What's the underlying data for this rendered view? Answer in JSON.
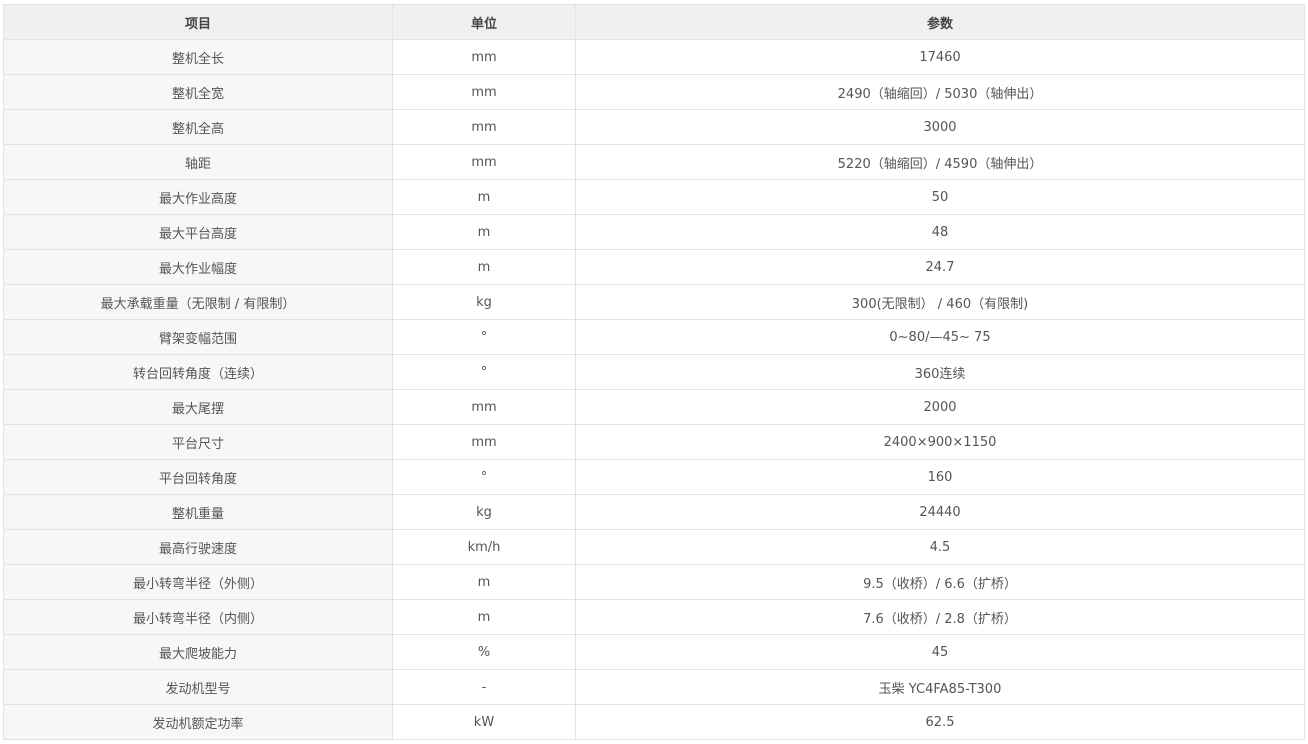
{
  "table": {
    "headers": [
      "项目",
      "单位",
      "参数"
    ],
    "rows": [
      [
        "整机全长",
        "mm",
        "17460"
      ],
      [
        "整机全宽",
        "mm",
        "2490（轴缩回）/ 5030（轴伸出）"
      ],
      [
        "整机全高",
        "mm",
        "3000"
      ],
      [
        "轴距",
        "mm",
        "5220（轴缩回）/ 4590（轴伸出）"
      ],
      [
        "最大作业高度",
        "m",
        "50"
      ],
      [
        "最大平台高度",
        "m",
        "48"
      ],
      [
        "最大作业幅度",
        "m",
        "24.7"
      ],
      [
        "最大承载重量（无限制 / 有限制）",
        "kg",
        "300(无限制） / 460（有限制)"
      ],
      [
        "臂架变幅范围",
        "°",
        "0~80/—45~ 75"
      ],
      [
        "转台回转角度（连续）",
        "°",
        "360连续"
      ],
      [
        "最大尾摆",
        "mm",
        "2000"
      ],
      [
        "平台尺寸",
        "mm",
        "2400×900×1150"
      ],
      [
        "平台回转角度",
        "°",
        "160"
      ],
      [
        "整机重量",
        "kg",
        "24440"
      ],
      [
        "最高行驶速度",
        "km/h",
        "4.5"
      ],
      [
        "最小转弯半径（外侧）",
        "m",
        "9.5（收桥）/ 6.6（扩桥）"
      ],
      [
        "最小转弯半径（内侧）",
        "m",
        "7.6（收桥）/ 2.8（扩桥）"
      ],
      [
        "最大爬坡能力",
        "%",
        "45"
      ],
      [
        "发动机型号",
        "-",
        "玉柴 YC4FA85-T300"
      ],
      [
        "发动机额定功率",
        "kW",
        "62.5"
      ]
    ]
  }
}
